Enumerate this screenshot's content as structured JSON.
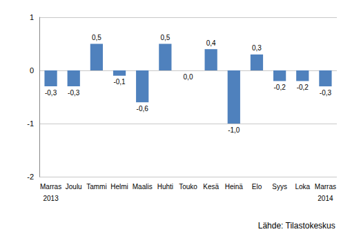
{
  "chart_data": {
    "type": "bar",
    "categories": [
      "Marras\n2013",
      "Joulu",
      "Tammi",
      "Helmi",
      "Maalis",
      "Huhti",
      "Touko",
      "Kesä",
      "Heinä",
      "Elo",
      "Syys",
      "Loka",
      "Marras\n2014"
    ],
    "values": [
      -0.3,
      -0.3,
      0.5,
      -0.1,
      -0.6,
      0.5,
      0.0,
      0.4,
      -1.0,
      0.3,
      -0.2,
      -0.2,
      -0.3
    ],
    "value_labels": [
      "-0,3",
      "-0,3",
      "0,5",
      "-0,1",
      "-0,6",
      "0,5",
      "0,0",
      "0,4",
      "-1,0",
      "0,3",
      "-0,2",
      "-0,2",
      "-0,3"
    ],
    "color": "#4f81bd",
    "ylim": [
      -2,
      1
    ],
    "yticks": [
      -2,
      -1,
      0,
      1
    ],
    "grid": true,
    "data_labels": true,
    "source": "Lähde: Tilastokeskus"
  }
}
